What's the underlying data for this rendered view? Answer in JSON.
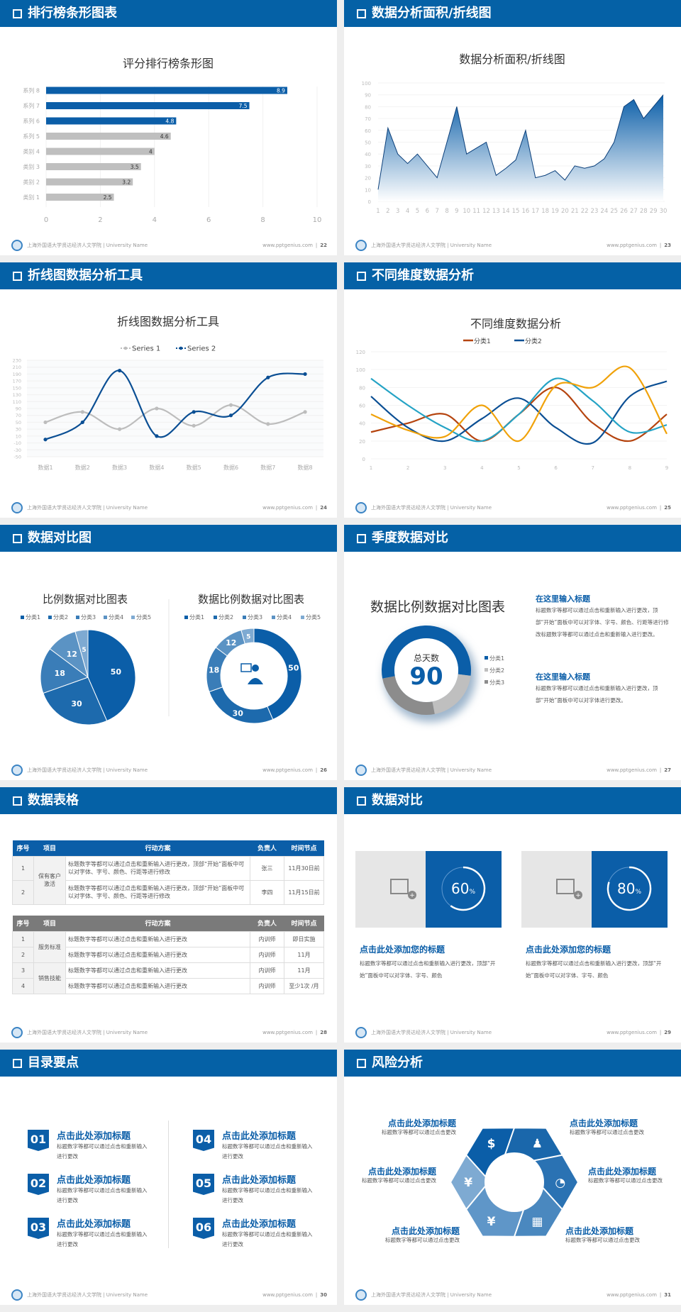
{
  "footer": {
    "school": "上海外国语大学贤达经济人文学院 | University Name",
    "site": "www.pptgenius.com"
  },
  "slides": [
    {
      "title": "排行榜条形图表",
      "page": "22"
    },
    {
      "title": "数据分析面积/折线图",
      "page": "23"
    },
    {
      "title": "折线图数据分析工具",
      "page": "24"
    },
    {
      "title": "不同维度数据分析",
      "page": "25"
    },
    {
      "title": "数据对比图",
      "page": "26"
    },
    {
      "title": "季度数据对比",
      "page": "27"
    },
    {
      "title": "数据表格",
      "page": "28"
    },
    {
      "title": "数据对比",
      "page": "29"
    },
    {
      "title": "目录要点",
      "page": "30"
    },
    {
      "title": "风险分析",
      "page": "31"
    }
  ],
  "chart_data": [
    {
      "type": "bar",
      "title": "评分排行榜条形图",
      "categories": [
        "类别 1",
        "类别 2",
        "类别 3",
        "类别 4",
        "系列 5",
        "系列 6",
        "系列 7",
        "系列 8"
      ],
      "values": [
        2.5,
        3.2,
        3.5,
        4,
        4.6,
        4.8,
        7.5,
        8.9
      ],
      "colors": [
        "#bfbfbf",
        "#bfbfbf",
        "#bfbfbf",
        "#bfbfbf",
        "#bfbfbf",
        "#0b5ea8",
        "#0b5ea8",
        "#0b5ea8"
      ],
      "xlim": [
        0,
        10
      ],
      "xticks": [
        0,
        2,
        4,
        6,
        8,
        10
      ],
      "orientation": "horizontal"
    },
    {
      "type": "area",
      "title": "数据分析面积/折线图",
      "x": [
        1,
        2,
        3,
        4,
        5,
        6,
        7,
        8,
        9,
        10,
        11,
        12,
        13,
        14,
        15,
        16,
        17,
        18,
        19,
        20,
        21,
        22,
        23,
        24,
        25,
        26,
        27,
        28,
        29,
        30
      ],
      "values": [
        10,
        62,
        40,
        32,
        40,
        30,
        20,
        50,
        80,
        40,
        45,
        50,
        22,
        28,
        35,
        60,
        20,
        22,
        26,
        18,
        30,
        28,
        30,
        36,
        50,
        80,
        86,
        70,
        80,
        90
      ],
      "ylim": [
        0,
        100
      ],
      "yticks": [
        0,
        10,
        20,
        30,
        40,
        50,
        60,
        70,
        80,
        90,
        100
      ],
      "color": "#0b5ea8"
    },
    {
      "type": "line",
      "title": "折线图数据分析工具",
      "categories": [
        "数据1",
        "数据2",
        "数据3",
        "数据4",
        "数据5",
        "数据6",
        "数据7",
        "数据8"
      ],
      "series": [
        {
          "name": "Series 1",
          "values": [
            50,
            80,
            30,
            90,
            40,
            100,
            45,
            80
          ],
          "color": "#bdbdbd"
        },
        {
          "name": "Series 2",
          "values": [
            0,
            50,
            200,
            10,
            80,
            70,
            180,
            190
          ],
          "color": "#0b4f94"
        }
      ],
      "ylim": [
        -50,
        230
      ],
      "yticks": [
        -50,
        -30,
        -10,
        10,
        30,
        50,
        70,
        90,
        110,
        130,
        150,
        170,
        190,
        210,
        230
      ],
      "smooth": true,
      "legend": "top"
    },
    {
      "type": "line",
      "title": "不同维度数据分析",
      "x": [
        1,
        2,
        3,
        4,
        5,
        6,
        7,
        8,
        9
      ],
      "series": [
        {
          "name": "分类1",
          "values": [
            30,
            40,
            50,
            20,
            50,
            80,
            40,
            20,
            50
          ],
          "color": "#b5440f"
        },
        {
          "name": "分类2",
          "values": [
            70,
            35,
            20,
            45,
            68,
            35,
            18,
            70,
            87
          ],
          "color": "#0b4f94"
        },
        {
          "values": [
            90,
            60,
            35,
            20,
            50,
            90,
            65,
            30,
            38
          ],
          "color": "#25a3c5"
        },
        {
          "values": [
            50,
            32,
            25,
            60,
            20,
            82,
            80,
            102,
            28
          ],
          "color": "#f0a20a"
        }
      ],
      "ylim": [
        0,
        120
      ],
      "yticks": [
        0,
        20,
        40,
        60,
        80,
        100,
        120
      ],
      "smooth": true,
      "legend": "top"
    },
    {
      "type": "pie",
      "title": "比例数据对比图表",
      "categories": [
        "分类1",
        "分类2",
        "分类3",
        "分类4",
        "分类5"
      ],
      "values": [
        50,
        30,
        18,
        12,
        5
      ],
      "colors": [
        "#0b5ea8",
        "#1d6aad",
        "#3a7db8",
        "#5b93c4",
        "#7eaad2"
      ],
      "legend": "top"
    },
    {
      "type": "donut",
      "title": "数据比例数据对比图表",
      "categories": [
        "分类1",
        "分类2",
        "分类3",
        "分类4",
        "分类5"
      ],
      "values": [
        50,
        30,
        18,
        12,
        5
      ],
      "colors": [
        "#0b5ea8",
        "#1d6aad",
        "#3a7db8",
        "#5b93c4",
        "#7eaad2"
      ],
      "legend": "top",
      "center_icon": "presenter-icon"
    },
    {
      "type": "donut",
      "title": "数据比例数据对比图表",
      "categories": [
        "分类1",
        "分类2",
        "分类3"
      ],
      "values": [
        55,
        20,
        25
      ],
      "colors": [
        "#0b5ea8",
        "#bfbfbf",
        "#8c8c8c"
      ],
      "center_label": "总天数",
      "center_value": "90",
      "legend": "right"
    }
  ],
  "s6": {
    "blocks": [
      {
        "heading": "在这里输入标题",
        "body": "标题数字等都可以通过点击和重新输入进行更改，顶部“开始”面板中可以对字体、字号、颜色、行距等进行修改标题数字等都可以通过点击和重新输入进行更改。"
      },
      {
        "heading": "在这里输入标题",
        "body": "标题数字等都可以通过点击和重新输入进行更改，顶部“开始”面板中可以对字体进行更改。"
      }
    ]
  },
  "s7": {
    "headers": [
      "序号",
      "项目",
      "行动方案",
      "负责人",
      "时间节点"
    ],
    "t1": {
      "group": "保有客户激活",
      "rows": [
        [
          "1",
          "标题数字等都可以通过点击和重新输入进行更改，顶部“开始”面板中可以对字体、字号、颜色、行距等进行修改",
          "张三",
          "11月30日前"
        ],
        [
          "2",
          "标题数字等都可以通过点击和重新输入进行更改，顶部“开始”面板中可以对字体、字号、颜色、行距等进行修改",
          "李四",
          "11月15日前"
        ]
      ]
    },
    "t2": {
      "groups": [
        "服务标准",
        "销售技能"
      ],
      "rows": [
        [
          "1",
          "标题数字等都可以通过点击和重新输入进行更改",
          "内训师",
          "即日实施"
        ],
        [
          "2",
          "标题数字等都可以通过点击和重新输入进行更改",
          "内训师",
          "11月"
        ],
        [
          "3",
          "标题数字等都可以通过点击和重新输入进行更改",
          "内训师",
          "11月"
        ],
        [
          "4",
          "标题数字等都可以通过点击和重新输入进行更改",
          "内训师",
          "至少1次 /月"
        ]
      ]
    }
  },
  "s8": {
    "cards": [
      {
        "percent": 60,
        "label": "60",
        "unit": "%",
        "title": "点击此处添加您的标题",
        "body": "标题数字等都可以通过点击和重新输入进行更改，顶部“开始”面板中可以对字体、字号、颜色"
      },
      {
        "percent": 80,
        "label": "80",
        "unit": "%",
        "title": "点击此处添加您的标题",
        "body": "标题数字等都可以通过点击和重新输入进行更改，顶部“开始”面板中可以对字体、字号、颜色"
      }
    ]
  },
  "s9": {
    "items": [
      {
        "num": "01",
        "title": "点击此处添加标题",
        "body": "标题数字等都可以通过点击和重新输入进行更改"
      },
      {
        "num": "02",
        "title": "点击此处添加标题",
        "body": "标题数字等都可以通过点击和重新输入进行更改"
      },
      {
        "num": "03",
        "title": "点击此处添加标题",
        "body": "标题数字等都可以通过点击和重新输入进行更改"
      },
      {
        "num": "04",
        "title": "点击此处添加标题",
        "body": "标题数字等都可以通过点击和重新输入进行更改"
      },
      {
        "num": "05",
        "title": "点击此处添加标题",
        "body": "标题数字等都可以通过点击和重新输入进行更改"
      },
      {
        "num": "06",
        "title": "点击此处添加标题",
        "body": "标题数字等都可以通过点击和重新输入进行更改"
      }
    ]
  },
  "s10": {
    "items": [
      {
        "title": "点击此处添加标题",
        "body": "标题数字等都可以通过点击更改",
        "icon": "money-bag-icon"
      },
      {
        "title": "点击此处添加标题",
        "body": "标题数字等都可以通过点击更改",
        "icon": "coins-icon"
      },
      {
        "title": "点击此处添加标题",
        "body": "标题数字等都可以通过点击更改",
        "icon": "hand-yen-icon"
      },
      {
        "title": "点击此处添加标题",
        "body": "标题数字等都可以通过点击更改",
        "icon": "users-icon"
      },
      {
        "title": "点击此处添加标题",
        "body": "标题数字等都可以通过点击更改",
        "icon": "building-icon"
      },
      {
        "title": "点击此处添加标题",
        "body": "标题数字等都可以通过点击更改",
        "icon": "pie-chart-icon"
      }
    ],
    "colors": [
      "#7eaad2",
      "#0b5ea8",
      "#1a67ab",
      "#2a72b3",
      "#4a88bf",
      "#5f96c8"
    ]
  }
}
